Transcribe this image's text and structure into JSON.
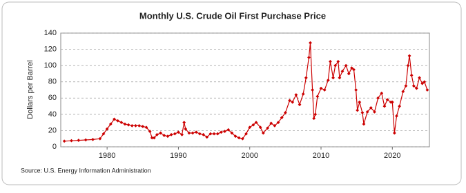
{
  "chart_data": {
    "type": "line",
    "title": "Monthly U.S. Crude Oil First Purchase Price",
    "y_label": "Dollars per Barrel",
    "source": "Source: U.S. Energy Information Administration",
    "series": [
      {
        "name": "Crude Oil First Purchase Price",
        "color": "#cc0000",
        "x": [
          1974.0,
          1975.0,
          1976.0,
          1977.0,
          1978.0,
          1979.0,
          1979.5,
          1980.0,
          1980.5,
          1981.0,
          1981.5,
          1982.0,
          1982.5,
          1983.0,
          1983.5,
          1984.0,
          1984.5,
          1985.0,
          1985.5,
          1986.0,
          1986.3,
          1986.6,
          1987.0,
          1987.5,
          1988.0,
          1988.5,
          1989.0,
          1989.5,
          1990.0,
          1990.5,
          1990.8,
          1991.0,
          1991.5,
          1992.0,
          1992.5,
          1993.0,
          1993.5,
          1994.0,
          1994.5,
          1995.0,
          1995.5,
          1996.0,
          1996.5,
          1997.0,
          1997.5,
          1998.0,
          1998.5,
          1999.0,
          1999.5,
          2000.0,
          2000.5,
          2000.9,
          2001.5,
          2001.9,
          2002.5,
          2003.0,
          2003.5,
          2004.0,
          2004.5,
          2005.0,
          2005.6,
          2006.0,
          2006.5,
          2007.0,
          2007.5,
          2007.9,
          2008.3,
          2008.5,
          2008.8,
          2009.0,
          2009.2,
          2009.5,
          2010.0,
          2010.5,
          2011.0,
          2011.3,
          2011.7,
          2012.0,
          2012.4,
          2012.6,
          2013.0,
          2013.5,
          2013.9,
          2014.3,
          2014.6,
          2014.9,
          2015.1,
          2015.4,
          2015.8,
          2016.0,
          2016.5,
          2017.0,
          2017.5,
          2018.0,
          2018.5,
          2018.9,
          2019.3,
          2019.8,
          2020.0,
          2020.3,
          2020.6,
          2021.0,
          2021.5,
          2021.9,
          2022.2,
          2022.4,
          2022.7,
          2023.0,
          2023.4,
          2023.8,
          2024.2,
          2024.5,
          2024.9
        ],
        "values": [
          7,
          7.5,
          8,
          8.5,
          9,
          10,
          16,
          22,
          28,
          34,
          32,
          30,
          28,
          27,
          26,
          26,
          26,
          25,
          24,
          19,
          11,
          11,
          15,
          17,
          14,
          13,
          15,
          16,
          18,
          15,
          30,
          22,
          17,
          17,
          18,
          16,
          15,
          12,
          16,
          16,
          16,
          18,
          19,
          21,
          17,
          13,
          11,
          10,
          16,
          24,
          27,
          30,
          24,
          17,
          23,
          29,
          26,
          30,
          36,
          42,
          57,
          55,
          64,
          52,
          65,
          85,
          110,
          128,
          70,
          35,
          40,
          62,
          72,
          70,
          82,
          105,
          85,
          100,
          105,
          85,
          93,
          100,
          90,
          97,
          95,
          70,
          45,
          55,
          42,
          28,
          43,
          48,
          43,
          60,
          66,
          50,
          58,
          55,
          55,
          17,
          38,
          50,
          68,
          75,
          100,
          112,
          88,
          75,
          72,
          85,
          78,
          80,
          70
        ]
      }
    ],
    "xlim": [
      1973.5,
      2025.2
    ],
    "xticks": [
      1980,
      1990,
      2000,
      2010,
      2020
    ],
    "ylim": [
      0,
      140
    ],
    "yticks": [
      0,
      20,
      40,
      60,
      80,
      100,
      120,
      140
    ],
    "grid": true
  }
}
